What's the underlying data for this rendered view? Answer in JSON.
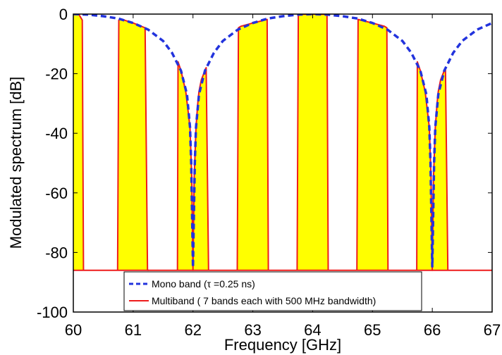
{
  "chart_data": {
    "type": "area",
    "title": "",
    "xlabel": "Frequency [GHz]",
    "ylabel": "Modulated spectrum [dB]",
    "xlim": [
      60,
      67
    ],
    "ylim": [
      -100,
      0
    ],
    "xticks": [
      "60",
      "61",
      "62",
      "63",
      "64",
      "65",
      "66",
      "67"
    ],
    "yticks": [
      "0",
      "-20",
      "-40",
      "-60",
      "-80",
      "-100"
    ],
    "grid": false,
    "legend_position": "bottom",
    "floor_db": -86,
    "colors": {
      "mono": "#2233dd",
      "multi": "#ee1c1c",
      "fill": "#ffff00",
      "axis": "#000000"
    },
    "series": [
      {
        "name": "Mono band  (τ =0.25 ns)",
        "style": "dashed",
        "x": [
          60.0,
          60.25,
          60.5,
          60.75,
          61.0,
          61.25,
          61.5,
          61.65,
          61.8,
          61.9,
          61.95,
          61.97,
          62.0,
          62.03,
          62.05,
          62.1,
          62.2,
          62.35,
          62.5,
          62.75,
          63.0,
          63.25,
          63.5,
          63.75,
          64.0,
          64.25,
          64.5,
          64.75,
          65.0,
          65.25,
          65.5,
          65.65,
          65.8,
          65.9,
          65.95,
          65.97,
          66.0,
          66.03,
          66.05,
          66.1,
          66.2,
          66.35,
          66.5,
          66.75,
          67.0
        ],
        "y": [
          0.0,
          -0.2,
          -0.7,
          -1.5,
          -3.0,
          -5.2,
          -9.0,
          -13.0,
          -19.0,
          -27.0,
          -38.0,
          -50.0,
          -85.0,
          -50.0,
          -38.0,
          -27.0,
          -19.0,
          -13.0,
          -9.0,
          -5.2,
          -3.0,
          -1.5,
          -0.7,
          -0.2,
          0.0,
          -0.2,
          -0.7,
          -1.5,
          -3.0,
          -5.2,
          -9.0,
          -13.0,
          -19.0,
          -27.0,
          -38.0,
          -50.0,
          -85.0,
          -50.0,
          -38.0,
          -27.0,
          -19.0,
          -13.0,
          -9.0,
          -5.2,
          -3.0
        ]
      },
      {
        "name": "Multiband ( 7 bands each with 500 MHz bandwidth)",
        "style": "solid-filled",
        "bands": [
          {
            "x": [
              59.92,
              59.96,
              60.0,
              60.09,
              60.15,
              60.17,
              60.17
            ],
            "y": [
              -86,
              0,
              0,
              0,
              -2,
              -86,
              -86
            ]
          },
          {
            "x": [
              60.74,
              60.76,
              60.8,
              61.0,
              61.2,
              61.24,
              61.26
            ],
            "y": [
              -86,
              -2,
              -1.7,
              -3.0,
              -4.6,
              -86,
              -86
            ]
          },
          {
            "x": [
              61.74,
              61.75,
              61.8,
              61.88,
              61.95,
              61.98,
              62.0,
              62.02,
              62.05,
              62.08,
              62.1,
              62.14,
              62.18,
              62.22,
              62.26
            ],
            "y": [
              -86,
              -16,
              -19,
              -26,
              -38,
              -55,
              -86,
              -55,
              -38,
              -30,
              -26,
              -22,
              -20,
              -18,
              -86
            ]
          },
          {
            "x": [
              62.74,
              62.76,
              62.8,
              63.0,
              63.2,
              63.24,
              63.26
            ],
            "y": [
              -86,
              -4.6,
              -4.1,
              -3.0,
              -2.0,
              -1.8,
              -86
            ]
          },
          {
            "x": [
              63.74,
              63.76,
              63.8,
              64.0,
              64.2,
              64.24,
              64.26
            ],
            "y": [
              -86,
              -0.2,
              -0.1,
              0.0,
              -0.1,
              -0.2,
              -86
            ]
          },
          {
            "x": [
              64.74,
              64.76,
              64.8,
              65.0,
              65.2,
              65.24,
              65.26
            ],
            "y": [
              -86,
              -1.8,
              -2.0,
              -3.0,
              -4.1,
              -4.6,
              -86
            ]
          },
          {
            "x": [
              65.74,
              65.75,
              65.8,
              65.88,
              65.95,
              65.98,
              66.0,
              66.02,
              66.05,
              66.08,
              66.1,
              66.14,
              66.18,
              66.22,
              66.26
            ],
            "y": [
              -86,
              -16,
              -19,
              -26,
              -38,
              -55,
              -86,
              -55,
              -38,
              -30,
              -26,
              -22,
              -20,
              -18,
              -86
            ]
          }
        ]
      }
    ]
  }
}
